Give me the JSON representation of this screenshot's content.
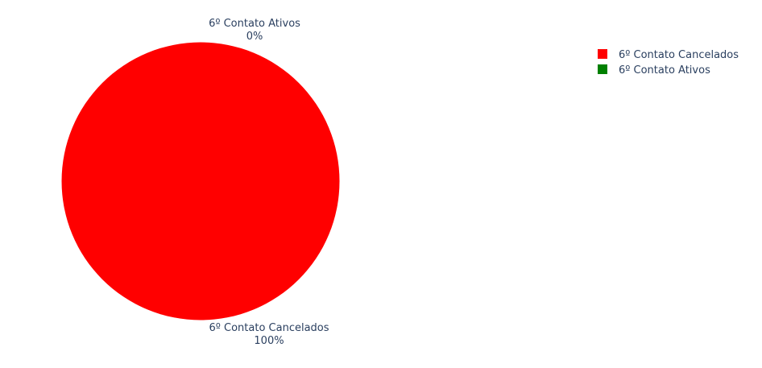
{
  "chart_data": {
    "type": "pie",
    "title": "",
    "labels": [
      "6º Contato Cancelados",
      "6º Contato Ativos"
    ],
    "values": [
      100,
      0
    ],
    "percent_text": [
      "100%",
      "0%"
    ],
    "colors": [
      "#ff0000",
      "#008000"
    ],
    "legend": {
      "placement": "top-right",
      "entries": [
        "6º Contato Cancelados",
        "6º Contato Ativos"
      ]
    }
  }
}
